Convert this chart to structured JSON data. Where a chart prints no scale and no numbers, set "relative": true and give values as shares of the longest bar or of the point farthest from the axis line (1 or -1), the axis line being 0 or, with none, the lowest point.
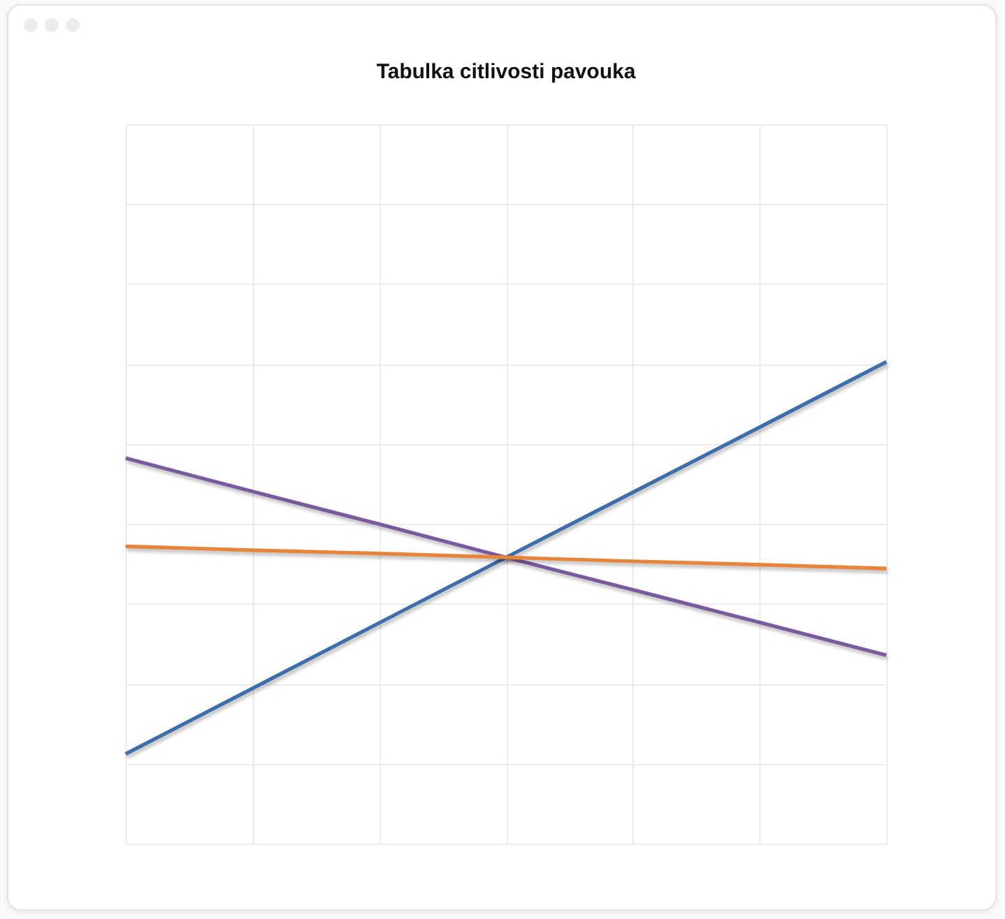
{
  "chart_data": {
    "type": "line",
    "title": "Tabulka citlivosti pavouka",
    "relative": true,
    "categories": [
      null,
      null,
      null,
      null,
      null,
      null,
      null
    ],
    "series": [
      {
        "color": "#3d6eab",
        "values": [
          0.186,
          0.322,
          0.458,
          0.594,
          0.729,
          0.864,
          1
        ]
      },
      {
        "color": "#7a5a9e",
        "values": [
          0.8,
          0.731,
          0.663,
          0.594,
          0.527,
          0.459,
          0.391
        ]
      },
      {
        "color": "#e8833a",
        "values": [
          0.617,
          0.609,
          0.602,
          0.594,
          0.586,
          0.579,
          0.571
        ]
      }
    ],
    "grid": true
  }
}
